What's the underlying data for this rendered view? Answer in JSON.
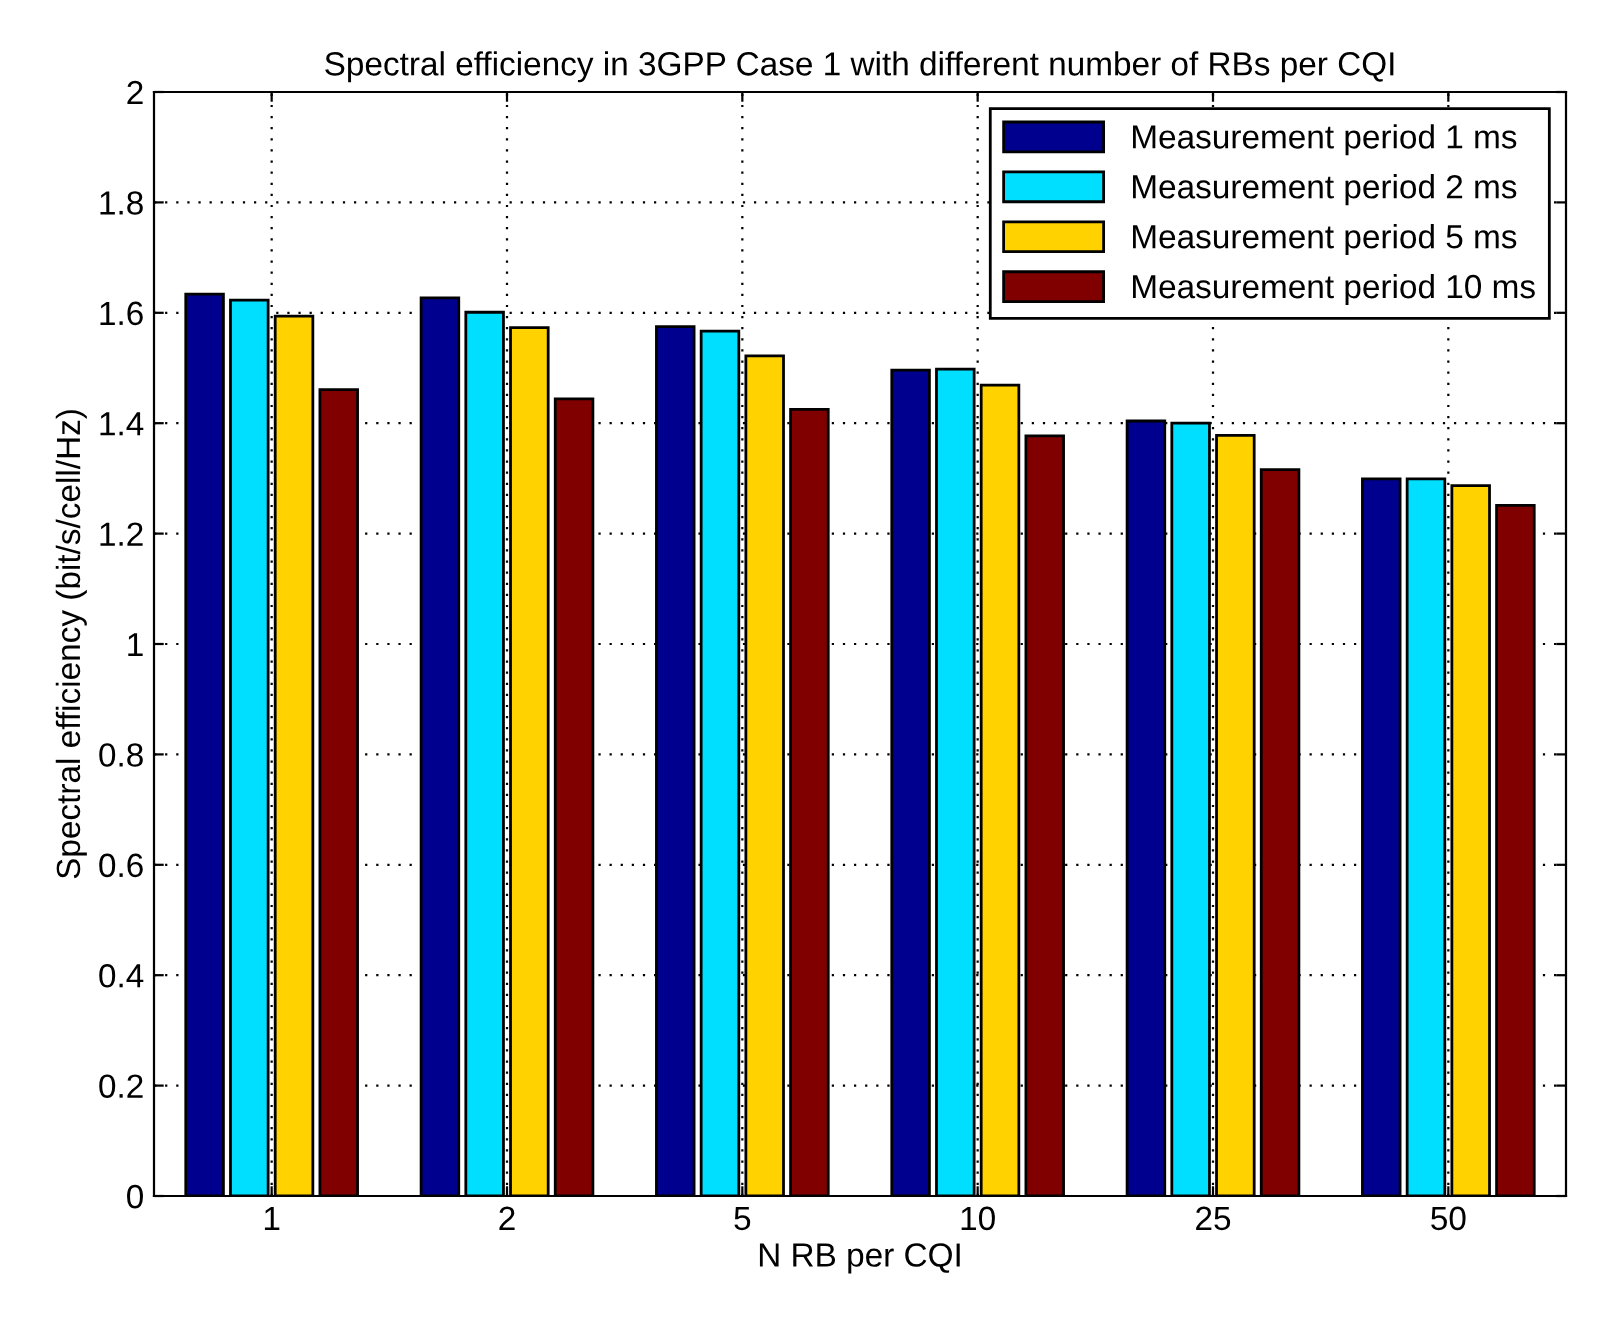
{
  "chart_data": {
    "type": "bar",
    "title": "Spectral efficiency in 3GPP Case 1 with different number of RBs per CQI",
    "xlabel": "N RB per CQI",
    "ylabel": "Spectral efficiency (bit/s/cell/Hz)",
    "categories": [
      "1",
      "2",
      "5",
      "10",
      "25",
      "50"
    ],
    "series": [
      {
        "name": "Measurement period 1 ms",
        "color": "#00008f",
        "values": [
          1.634,
          1.627,
          1.575,
          1.496,
          1.404,
          1.299
        ]
      },
      {
        "name": "Measurement period 2 ms",
        "color": "#00dfff",
        "values": [
          1.623,
          1.601,
          1.567,
          1.498,
          1.4,
          1.299
        ]
      },
      {
        "name": "Measurement period 5 ms",
        "color": "#ffd200",
        "values": [
          1.594,
          1.573,
          1.522,
          1.469,
          1.378,
          1.287
        ]
      },
      {
        "name": "Measurement period 10 ms",
        "color": "#800000",
        "values": [
          1.461,
          1.444,
          1.425,
          1.377,
          1.316,
          1.251
        ]
      }
    ],
    "ylim": [
      0,
      2
    ],
    "yticks": [
      0,
      0.2,
      0.4,
      0.6,
      0.8,
      1,
      1.2,
      1.4,
      1.6,
      1.8,
      2
    ],
    "grid": true,
    "legend": "top right"
  }
}
